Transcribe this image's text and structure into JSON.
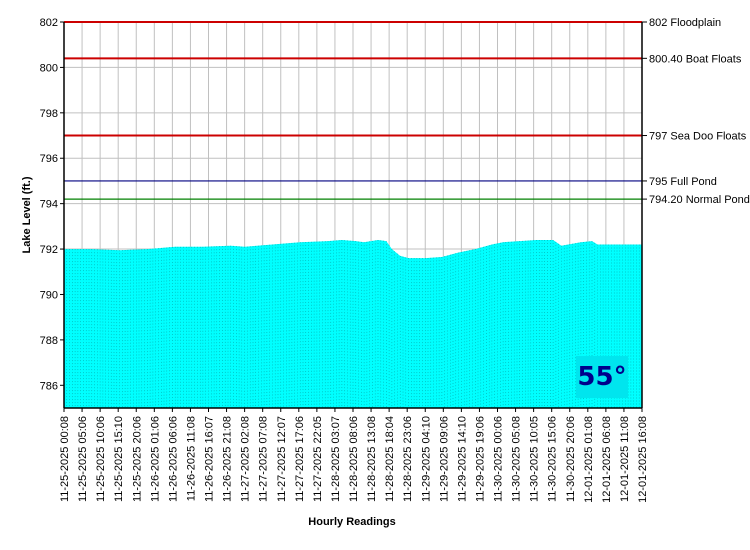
{
  "chart_data": {
    "type": "area",
    "xlabel": "Hourly Readings",
    "ylabel": "Lake Level (ft.)",
    "ylim": [
      785,
      802
    ],
    "y_ticks": [
      "786",
      "788",
      "790",
      "792",
      "794",
      "796",
      "798",
      "800",
      "802"
    ],
    "x_ticks": [
      "11-25-2025 00:08",
      "11-25-2025 05:06",
      "11-25-2025 10:06",
      "11-25-2025 15:10",
      "11-25-2025 20:06",
      "11-26-2025 01:06",
      "11-26-2025 06:06",
      "11-26-2025 11:08",
      "11-26-2025 16:07",
      "11-26-2025 21:08",
      "11-27-2025 02:08",
      "11-27-2025 07:08",
      "11-27-2025 12:07",
      "11-27-2025 17:06",
      "11-27-2025 22:05",
      "11-28-2025 03:07",
      "11-28-2025 08:06",
      "11-28-2025 13:08",
      "11-28-2025 18:04",
      "11-28-2025 23:06",
      "11-29-2025 04:10",
      "11-29-2025 09:06",
      "11-29-2025 14:10",
      "11-29-2025 19:06",
      "11-30-2025 00:06",
      "11-30-2025 05:08",
      "11-30-2025 10:05",
      "11-30-2025 15:06",
      "11-30-2025 20:06",
      "12-01-2025 01:08",
      "12-01-2025 06:08",
      "12-01-2025 11:08",
      "12-01-2025 16:08"
    ],
    "x_range_hours": [
      0,
      160
    ],
    "series": [
      {
        "fill_color": "#00ffff",
        "points": [
          [
            0,
            792.0
          ],
          [
            10,
            792.0
          ],
          [
            20,
            791.95
          ],
          [
            30,
            792.0
          ],
          [
            40,
            792.1
          ],
          [
            50,
            792.1
          ],
          [
            60,
            792.15
          ],
          [
            65,
            792.1
          ],
          [
            75,
            792.2
          ],
          [
            85,
            792.3
          ],
          [
            95,
            792.35
          ],
          [
            100,
            792.4
          ],
          [
            105,
            792.35
          ],
          [
            108,
            792.3
          ],
          [
            113,
            792.4
          ],
          [
            116,
            792.35
          ],
          [
            118,
            792.0
          ],
          [
            121,
            791.7
          ],
          [
            124,
            791.6
          ],
          [
            130,
            791.6
          ],
          [
            136,
            791.65
          ],
          [
            142,
            791.85
          ],
          [
            148,
            792.0
          ],
          [
            154,
            792.2
          ],
          [
            158,
            792.3
          ],
          [
            164,
            792.35
          ],
          [
            170,
            792.4
          ],
          [
            176,
            792.4
          ],
          [
            179,
            792.15
          ],
          [
            186,
            792.3
          ],
          [
            190,
            792.35
          ],
          [
            192,
            792.2
          ],
          [
            200,
            792.2
          ],
          [
            208,
            792.2
          ]
        ]
      }
    ],
    "reference_lines": [
      {
        "value": 802,
        "label": "802 Floodplain",
        "color": "#cc0000"
      },
      {
        "value": 800.4,
        "label": "800.40 Boat Floats",
        "color": "#cc0000"
      },
      {
        "value": 797,
        "label": "797 Sea Doo Floats",
        "color": "#cc0000"
      },
      {
        "value": 795,
        "label": "795 Full Pond",
        "color": "#000080"
      },
      {
        "value": 794.2,
        "label": "794.20 Normal Pond",
        "color": "#008000"
      }
    ],
    "grid": true
  },
  "temperature": "55°"
}
